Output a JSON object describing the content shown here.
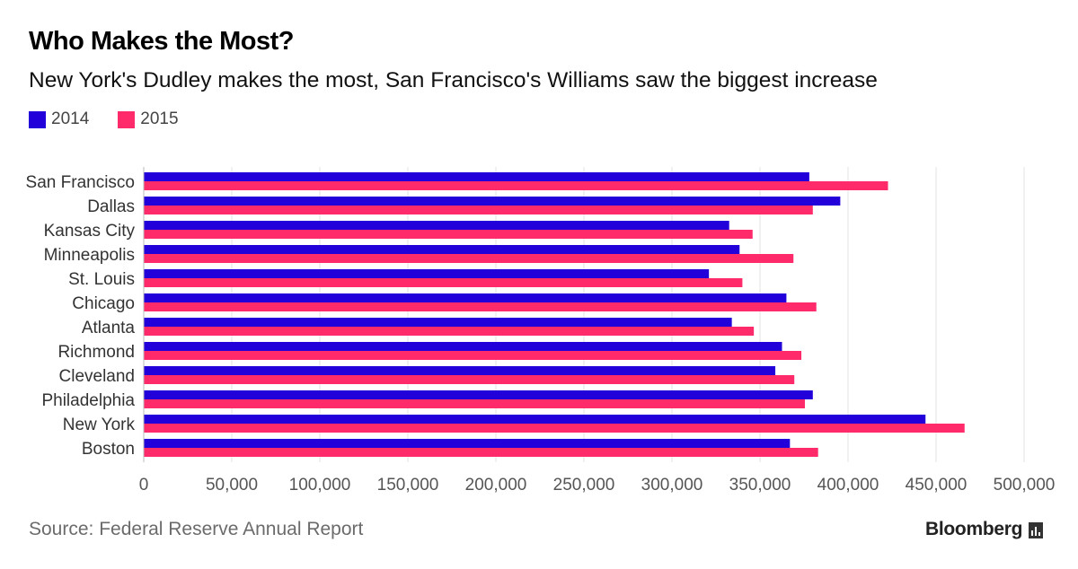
{
  "header": {
    "title": "Who Makes the Most?",
    "subtitle": "New York's Dudley makes the most, San Francisco's Williams saw the biggest increase"
  },
  "legend": [
    {
      "label": "2014",
      "color": "#2200d9"
    },
    {
      "label": "2015",
      "color": "#ff2a6a"
    }
  ],
  "footer": {
    "source": "Source: Federal Reserve Annual Report",
    "brand": "Bloomberg"
  },
  "chart_data": {
    "type": "bar",
    "orientation": "horizontal",
    "categories": [
      "San Francisco",
      "Dallas",
      "Kansas City",
      "Minneapolis",
      "St. Louis",
      "Chicago",
      "Atlanta",
      "Richmond",
      "Cleveland",
      "Philadelphia",
      "New York",
      "Boston"
    ],
    "series": [
      {
        "name": "2014",
        "color": "#2200d9",
        "values": [
          378000,
          395600,
          332500,
          338400,
          321000,
          365000,
          334000,
          362500,
          358700,
          380000,
          444000,
          367000
        ]
      },
      {
        "name": "2015",
        "color": "#ff2a6a",
        "values": [
          422700,
          380000,
          345800,
          369000,
          340000,
          382000,
          346500,
          373500,
          369500,
          375500,
          466200,
          383000
        ]
      }
    ],
    "xlim": [
      0,
      500000
    ],
    "xticks": [
      0,
      50000,
      100000,
      150000,
      200000,
      250000,
      300000,
      350000,
      400000,
      450000,
      500000
    ],
    "xtick_labels": [
      "0",
      "50,000",
      "100,000",
      "150,000",
      "200,000",
      "250,000",
      "300,000",
      "350,000",
      "400,000",
      "450,000",
      "500,000"
    ],
    "grid": true,
    "legend_position": "top-left"
  }
}
